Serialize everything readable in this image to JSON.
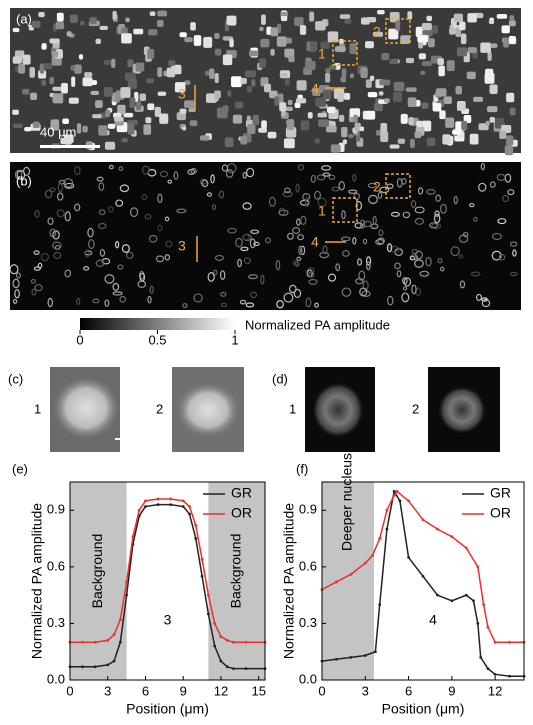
{
  "panels": {
    "a": {
      "label": "(a)",
      "scale_bar": "40 μm",
      "markers": [
        "1",
        "2",
        "3",
        "4"
      ]
    },
    "b": {
      "label": "(b)",
      "markers": [
        "1",
        "2",
        "3",
        "4"
      ]
    },
    "colorbar": {
      "label": "Normalized PA amplitude",
      "lim": [
        0,
        1
      ],
      "ticks": [
        0,
        0.5,
        1
      ]
    },
    "c": {
      "label": "(c)",
      "images": [
        "1",
        "2"
      ]
    },
    "d": {
      "label": "(d)",
      "images": [
        "1",
        "2"
      ]
    }
  },
  "chart_data": [
    {
      "type": "line",
      "panel": "(e)",
      "ylabel": "Normalized PA amplitude",
      "xlabel": "Position (μm)",
      "annotation": "3",
      "shade_label": "Background",
      "shades": [
        [
          0,
          4.5
        ],
        [
          11,
          15.5
        ]
      ],
      "xlim": [
        0,
        15.5
      ],
      "ylim": [
        0,
        1.05
      ],
      "xticks": [
        0,
        3,
        6,
        9,
        12,
        15
      ],
      "yticks": [
        {
          "value": 0,
          "label": "0.0"
        },
        0.3,
        0.6,
        0.9
      ],
      "legend": "top-right",
      "series": [
        {
          "name": "GR",
          "color": "#222222",
          "x": [
            0,
            1,
            2,
            3,
            3.5,
            4,
            4.5,
            5,
            5.5,
            6,
            7,
            8,
            9,
            9.5,
            10,
            10.5,
            11,
            11.5,
            12,
            12.5,
            13,
            14,
            15.5
          ],
          "values": [
            0.07,
            0.07,
            0.07,
            0.08,
            0.1,
            0.2,
            0.45,
            0.72,
            0.87,
            0.92,
            0.93,
            0.93,
            0.92,
            0.88,
            0.75,
            0.55,
            0.35,
            0.18,
            0.1,
            0.07,
            0.06,
            0.06,
            0.06
          ]
        },
        {
          "name": "OR",
          "color": "#e8322b",
          "x": [
            0,
            1,
            2,
            3,
            3.5,
            4,
            4.5,
            5,
            5.5,
            6,
            7,
            8,
            9,
            9.5,
            10,
            10.5,
            11,
            11.5,
            12,
            12.5,
            13,
            14,
            15.5
          ],
          "values": [
            0.2,
            0.2,
            0.2,
            0.21,
            0.24,
            0.32,
            0.52,
            0.76,
            0.9,
            0.95,
            0.96,
            0.96,
            0.95,
            0.92,
            0.82,
            0.64,
            0.45,
            0.3,
            0.23,
            0.21,
            0.2,
            0.2,
            0.2
          ]
        }
      ]
    },
    {
      "type": "line",
      "panel": "(f)",
      "ylabel": "Normalized PA amplitude",
      "xlabel": "Position (μm)",
      "annotation": "4",
      "shade_label": "Deeper nucleus",
      "shades": [
        [
          0,
          3.6
        ]
      ],
      "xlim": [
        0,
        14
      ],
      "ylim": [
        0,
        1.05
      ],
      "xticks": [
        0,
        3,
        6,
        9,
        12
      ],
      "yticks": [
        {
          "value": 0,
          "label": "0.0"
        },
        0.3,
        0.6,
        0.9
      ],
      "legend": "top-right",
      "series": [
        {
          "name": "GR",
          "color": "#222222",
          "x": [
            0,
            1,
            2,
            3,
            3.7,
            4,
            4.5,
            5,
            5.4,
            6,
            7,
            8,
            9,
            10,
            10.5,
            10.8,
            11,
            11.5,
            12,
            13,
            14
          ],
          "values": [
            0.1,
            0.11,
            0.12,
            0.13,
            0.15,
            0.4,
            0.8,
            1.0,
            0.95,
            0.65,
            0.55,
            0.45,
            0.42,
            0.45,
            0.42,
            0.3,
            0.12,
            0.06,
            0.03,
            0.02,
            0.02
          ]
        },
        {
          "name": "OR",
          "color": "#e8322b",
          "x": [
            0,
            1,
            2,
            3,
            3.5,
            4,
            4.5,
            5,
            5.2,
            6,
            7,
            8,
            9,
            10,
            10.8,
            11.2,
            11.5,
            12,
            13,
            14
          ],
          "values": [
            0.48,
            0.52,
            0.56,
            0.62,
            0.66,
            0.75,
            0.9,
            0.98,
            1.0,
            0.95,
            0.85,
            0.8,
            0.76,
            0.7,
            0.6,
            0.4,
            0.28,
            0.2,
            0.2,
            0.2
          ]
        }
      ]
    }
  ]
}
